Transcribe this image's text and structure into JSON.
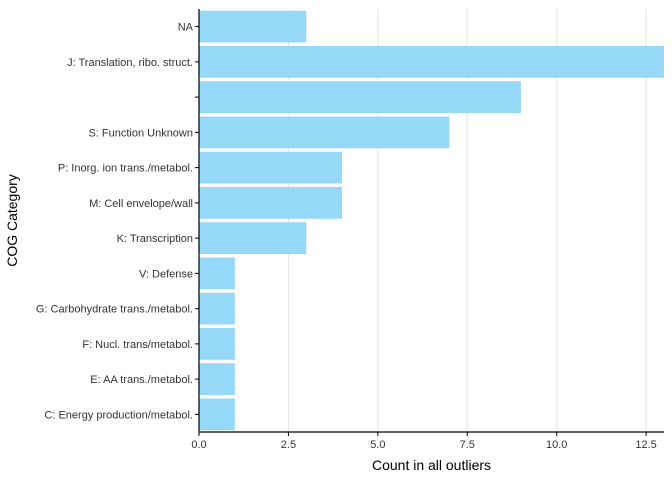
{
  "chart_data": {
    "type": "bar",
    "orientation": "horizontal",
    "categories": [
      "NA",
      "J: Translation, ribo. struct.",
      "",
      "S: Function Unknown",
      "P: Inorg. ion trans./metabol.",
      "M: Cell envelope/wall",
      "K: Transcription",
      "V: Defense",
      "G: Carbohydrate trans./metabol.",
      "F: Nucl. trans/metabol.",
      "E: AA trans./metabol.",
      "C: Energy production/metabol."
    ],
    "values": [
      3,
      13,
      9,
      7,
      4,
      4,
      3,
      1,
      1,
      1,
      1,
      1
    ],
    "xlabel": "Count in all outliers",
    "ylabel": "COG Category",
    "xlim": [
      0,
      13
    ],
    "xticks": [
      "0.0",
      "2.5",
      "5.0",
      "7.5",
      "10.0",
      "12.5"
    ],
    "xtick_values": [
      0,
      2.5,
      5,
      7.5,
      10,
      12.5
    ],
    "grid": "vertical major lines",
    "colors": {
      "bar": "#95d8f7",
      "grid": "#e5e5e5",
      "axis": "#000000"
    }
  }
}
